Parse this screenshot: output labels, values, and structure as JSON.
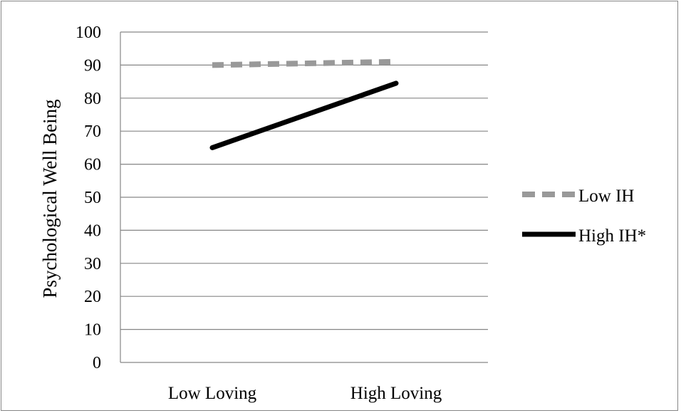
{
  "chart_data": {
    "type": "line",
    "title": "",
    "xlabel": "",
    "ylabel": "Psychological Well Being",
    "categories": [
      "Low Loving",
      "High Loving"
    ],
    "ylim": [
      0,
      100
    ],
    "yticks": [
      0,
      10,
      20,
      30,
      40,
      50,
      60,
      70,
      80,
      90,
      100
    ],
    "grid": true,
    "legend_position": "right",
    "series": [
      {
        "name": "Low IH",
        "values": [
          90,
          91
        ],
        "color": "#999999",
        "style": "dashed"
      },
      {
        "name": "High IH*",
        "values": [
          65,
          84.5
        ],
        "color": "#000000",
        "style": "solid"
      }
    ]
  }
}
